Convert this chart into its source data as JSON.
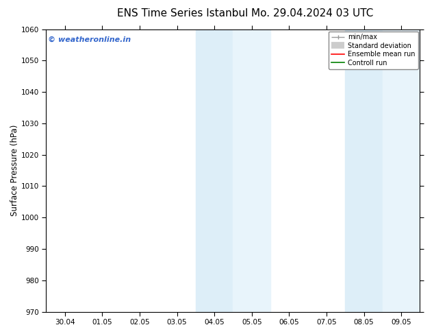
{
  "title_left": "ENS Time Series Istanbul",
  "title_right": "Mo. 29.04.2024 03 UTC",
  "ylabel": "Surface Pressure (hPa)",
  "ylim": [
    970,
    1060
  ],
  "yticks": [
    970,
    980,
    990,
    1000,
    1010,
    1020,
    1030,
    1040,
    1050,
    1060
  ],
  "xtick_labels": [
    "30.04",
    "01.05",
    "02.05",
    "03.05",
    "04.05",
    "05.05",
    "06.05",
    "07.05",
    "08.05",
    "09.05"
  ],
  "x_positions": [
    0,
    1,
    2,
    3,
    4,
    5,
    6,
    7,
    8,
    9
  ],
  "xlim": [
    -0.5,
    9.5
  ],
  "shaded_regions": [
    {
      "x_start": 3.5,
      "x_end": 4.5,
      "color": "#ddeef8"
    },
    {
      "x_start": 4.5,
      "x_end": 5.5,
      "color": "#e8f4fb"
    },
    {
      "x_start": 7.5,
      "x_end": 8.5,
      "color": "#ddeef8"
    },
    {
      "x_start": 8.5,
      "x_end": 9.5,
      "color": "#e8f4fb"
    }
  ],
  "watermark_text": "© weatheronline.in",
  "watermark_color": "#3366cc",
  "background_color": "#ffffff",
  "legend_labels": [
    "min/max",
    "Standard deviation",
    "Ensemble mean run",
    "Controll run"
  ],
  "legend_colors": [
    "#999999",
    "#cccccc",
    "#ff0000",
    "#008000"
  ],
  "title_fontsize": 11,
  "tick_fontsize": 7.5,
  "ylabel_fontsize": 8.5,
  "legend_fontsize": 7
}
